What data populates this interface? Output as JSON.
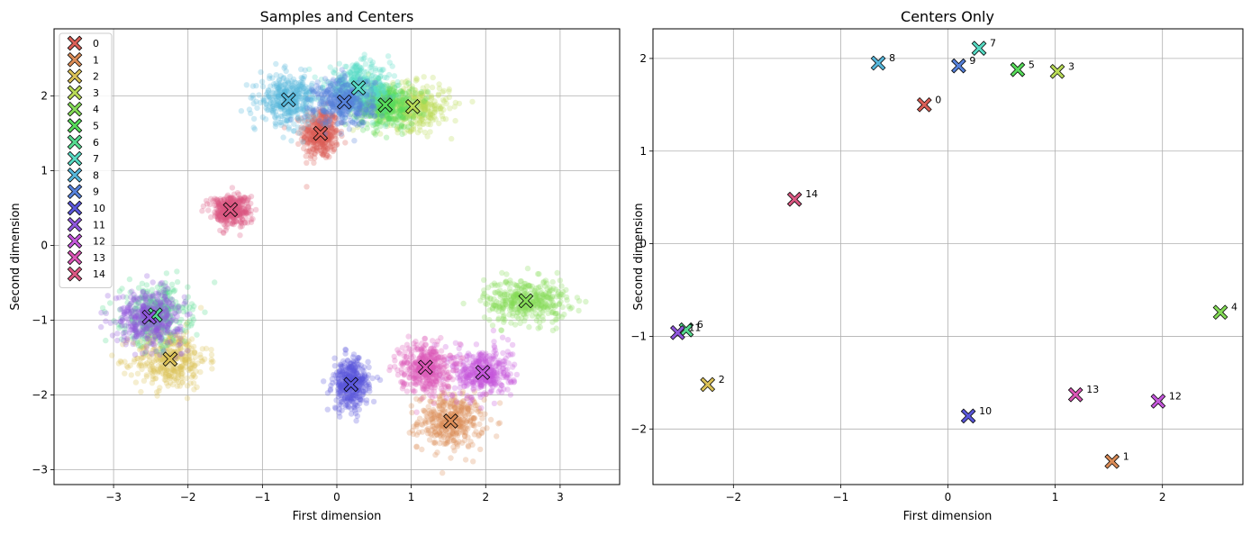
{
  "chart_data": [
    {
      "type": "scatter",
      "title": "Samples and Centers",
      "xlabel": "First dimension",
      "ylabel": "Second dimension",
      "xlim": [
        -3.8,
        3.8
      ],
      "ylim": [
        -3.2,
        2.9
      ],
      "xticks": [
        -3,
        -2,
        -1,
        0,
        1,
        2,
        3
      ],
      "xtick_labels": [
        "−3",
        "−2",
        "−1",
        "0",
        "1",
        "2",
        "3"
      ],
      "yticks": [
        -3,
        -2,
        -1,
        0,
        1,
        2
      ],
      "ytick_labels": [
        "−3",
        "−2",
        "−1",
        "0",
        "1",
        "2"
      ],
      "grid": true,
      "legend_position": "top-left",
      "legend": [
        "0",
        "1",
        "2",
        "3",
        "4",
        "5",
        "6",
        "7",
        "8",
        "9",
        "10",
        "11",
        "12",
        "13",
        "14"
      ],
      "series": [
        {
          "name": "0",
          "color": "#db5f57",
          "center": [
            -0.22,
            1.5
          ],
          "spread": [
            0.12,
            0.17
          ]
        },
        {
          "name": "1",
          "color": "#db8c57",
          "center": [
            1.53,
            -2.35
          ],
          "spread": [
            0.22,
            0.18
          ]
        },
        {
          "name": "2",
          "color": "#dbc157",
          "center": [
            -2.24,
            -1.52
          ],
          "spread": [
            0.25,
            0.2
          ]
        },
        {
          "name": "3",
          "color": "#b9db57",
          "center": [
            1.02,
            1.86
          ],
          "spread": [
            0.25,
            0.15
          ]
        },
        {
          "name": "4",
          "color": "#84db57",
          "center": [
            2.54,
            -0.74
          ],
          "spread": [
            0.28,
            0.15
          ]
        },
        {
          "name": "5",
          "color": "#57db5a",
          "center": [
            0.65,
            1.88
          ],
          "spread": [
            0.2,
            0.15
          ]
        },
        {
          "name": "6",
          "color": "#57db8f",
          "center": [
            -2.44,
            -0.93
          ],
          "spread": [
            0.22,
            0.2
          ]
        },
        {
          "name": "7",
          "color": "#57dbc4",
          "center": [
            0.29,
            2.11
          ],
          "spread": [
            0.22,
            0.15
          ]
        },
        {
          "name": "8",
          "color": "#57b7db",
          "center": [
            -0.65,
            1.95
          ],
          "spread": [
            0.19,
            0.16
          ]
        },
        {
          "name": "9",
          "color": "#5782db",
          "center": [
            0.1,
            1.92
          ],
          "spread": [
            0.2,
            0.16
          ]
        },
        {
          "name": "10",
          "color": "#5a57db",
          "center": [
            0.19,
            -1.86
          ],
          "spread": [
            0.12,
            0.17
          ]
        },
        {
          "name": "11",
          "color": "#8f57db",
          "center": [
            -2.52,
            -0.96
          ],
          "spread": [
            0.22,
            0.18
          ]
        },
        {
          "name": "12",
          "color": "#c457db",
          "center": [
            1.96,
            -1.7
          ],
          "spread": [
            0.2,
            0.17
          ]
        },
        {
          "name": "13",
          "color": "#db57b7",
          "center": [
            1.19,
            -1.63
          ],
          "spread": [
            0.17,
            0.17
          ]
        },
        {
          "name": "14",
          "color": "#db5782",
          "center": [
            -1.43,
            0.48
          ],
          "spread": [
            0.13,
            0.1
          ]
        }
      ]
    },
    {
      "type": "scatter",
      "title": "Centers Only",
      "xlabel": "First dimension",
      "ylabel": "Second dimension",
      "xlim": [
        -2.75,
        2.75
      ],
      "ylim": [
        -2.6,
        2.32
      ],
      "xticks": [
        -2,
        -1,
        0,
        1,
        2
      ],
      "xtick_labels": [
        "−2",
        "−1",
        "0",
        "1",
        "2"
      ],
      "yticks": [
        -2,
        -1,
        0,
        1,
        2
      ],
      "ytick_labels": [
        "−2",
        "−1",
        "0",
        "1",
        "2"
      ],
      "grid": true,
      "points": [
        {
          "label": "0",
          "x": -0.22,
          "y": 1.5,
          "color": "#db5f57"
        },
        {
          "label": "1",
          "x": 1.53,
          "y": -2.35,
          "color": "#db8c57"
        },
        {
          "label": "2",
          "x": -2.24,
          "y": -1.52,
          "color": "#dbc157"
        },
        {
          "label": "3",
          "x": 1.02,
          "y": 1.86,
          "color": "#b9db57"
        },
        {
          "label": "4",
          "x": 2.54,
          "y": -0.74,
          "color": "#84db57"
        },
        {
          "label": "5",
          "x": 0.65,
          "y": 1.88,
          "color": "#57db5a"
        },
        {
          "label": "6",
          "x": -2.44,
          "y": -0.93,
          "color": "#57db8f"
        },
        {
          "label": "7",
          "x": 0.29,
          "y": 2.11,
          "color": "#57dbc4"
        },
        {
          "label": "8",
          "x": -0.65,
          "y": 1.95,
          "color": "#57b7db"
        },
        {
          "label": "9",
          "x": 0.1,
          "y": 1.92,
          "color": "#5782db"
        },
        {
          "label": "10",
          "x": 0.19,
          "y": -1.86,
          "color": "#5a57db"
        },
        {
          "label": "11",
          "x": -2.52,
          "y": -0.96,
          "color": "#8f57db"
        },
        {
          "label": "12",
          "x": 1.96,
          "y": -1.7,
          "color": "#c457db"
        },
        {
          "label": "13",
          "x": 1.19,
          "y": -1.63,
          "color": "#db57b7"
        },
        {
          "label": "14",
          "x": -1.43,
          "y": 0.48,
          "color": "#db5782"
        }
      ]
    }
  ]
}
